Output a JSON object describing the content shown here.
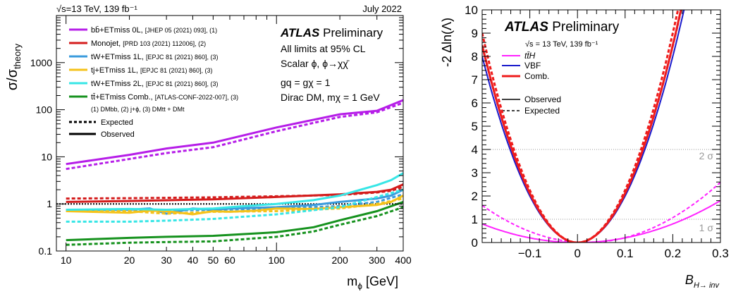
{
  "panels": [
    {
      "header_left": "√s=13 TeV, 139 fb⁻¹",
      "header_right": "July 2022",
      "ylabel": "σ/σtheory",
      "xlabel": "mϕ [GeV]",
      "atlas": "ATLAS",
      "atlas_suffix": "Preliminary",
      "info_lines": [
        "All limits at 95% CL",
        "Scalar ϕ, ϕ→χχ̄",
        "gq = gχ = 1",
        "Dirac DM, mχ = 1 GeV"
      ],
      "legend": [
        {
          "label": "bb̄+ETmiss 0L,",
          "ref": "[JHEP 05 (2021) 093], (1)",
          "color": "#b61de8"
        },
        {
          "label": "Monojet,",
          "ref": "[PRD 103 (2021) 112006], (2)",
          "color": "#d41c1c"
        },
        {
          "label": "tW+ETmiss 1L,",
          "ref": "[EPJC 81 (2021) 860], (3)",
          "color": "#3a9bdc"
        },
        {
          "label": "tj+ETmiss 1L,",
          "ref": "[EPJC 81 (2021) 860], (3)",
          "color": "#f5c21a"
        },
        {
          "label": "tW+ETmiss 2L,",
          "ref": "[EPJC 81 (2021) 860], (3)",
          "color": "#37e6e6"
        },
        {
          "label": "tt̄+ETmiss Comb.,",
          "ref": "[ATLAS-CONF-2022-007], (3)",
          "color": "#16921e"
        }
      ],
      "legend_note": "(1) DMbb, (2) j+ϕ, (3) DMtt + DMt",
      "style_legend": [
        "Expected",
        "Observed"
      ]
    },
    {
      "ylabel": "-2 Δln(Λ)",
      "xlabel": "BH→ inv",
      "atlas": "ATLAS",
      "atlas_suffix": "Preliminary",
      "energy": "√s = 13 TeV, 139 fb⁻¹",
      "legend": [
        {
          "label": "tt̄H",
          "color": "#ff22ff"
        },
        {
          "label": "VBF",
          "color": "#1a1acc"
        },
        {
          "label": "Comb.",
          "color": "#ee1c1c"
        }
      ],
      "style_legend": [
        "Observed",
        "Expected"
      ],
      "sigma_labels": [
        "2 σ",
        "1 σ"
      ]
    }
  ],
  "chart_data": [
    {
      "type": "line",
      "xscale": "log",
      "yscale": "log",
      "xlim": [
        9,
        400
      ],
      "ylim": [
        0.1,
        10000
      ],
      "x_ticks": [
        "10",
        "20",
        "30",
        "40",
        "50",
        "60",
        "100",
        "200",
        "300",
        "400"
      ],
      "y_ticks": [
        "0.1",
        "1",
        "10",
        "100",
        "1000"
      ],
      "reference_line": 1,
      "series": [
        {
          "name": "bb̄+ETmiss 0L",
          "style": "observed",
          "color": "#b61de8",
          "x": [
            10,
            20,
            30,
            50,
            100,
            200,
            300,
            400
          ],
          "y": [
            7,
            11,
            15,
            20,
            42,
            80,
            95,
            160
          ]
        },
        {
          "name": "bb̄+ETmiss 0L",
          "style": "expected",
          "color": "#b61de8",
          "x": [
            10,
            20,
            30,
            50,
            100,
            200,
            300,
            400
          ],
          "y": [
            5.5,
            9,
            12,
            16,
            35,
            70,
            88,
            140
          ]
        },
        {
          "name": "Monojet",
          "style": "observed",
          "color": "#d41c1c",
          "x": [
            10,
            20,
            50,
            100,
            200,
            300,
            350,
            400
          ],
          "y": [
            1.1,
            1.15,
            1.25,
            1.4,
            1.6,
            1.8,
            2.0,
            2.6
          ]
        },
        {
          "name": "Monojet",
          "style": "expected",
          "color": "#d41c1c",
          "x": [
            10,
            20,
            50,
            100,
            200,
            300,
            350,
            400
          ],
          "y": [
            1.3,
            1.32,
            1.38,
            1.45,
            1.55,
            1.75,
            1.9,
            2.3
          ]
        },
        {
          "name": "tW+ETmiss 1L",
          "style": "observed",
          "color": "#3a9bdc",
          "x": [
            10,
            20,
            25,
            30,
            40,
            50,
            60,
            100,
            150,
            200,
            300,
            350,
            400
          ],
          "y": [
            0.75,
            0.75,
            0.8,
            0.62,
            0.8,
            0.75,
            0.8,
            0.85,
            0.95,
            1.1,
            1.3,
            1.5,
            2.0
          ]
        },
        {
          "name": "tW+ETmiss 1L",
          "style": "expected",
          "color": "#3a9bdc",
          "x": [
            10,
            20,
            30,
            50,
            100,
            200,
            300,
            400
          ],
          "y": [
            0.7,
            0.7,
            0.72,
            0.75,
            0.8,
            0.9,
            1.1,
            1.6
          ]
        },
        {
          "name": "tj+ETmiss 1L",
          "style": "observed",
          "color": "#f5c21a",
          "x": [
            10,
            20,
            25,
            30,
            40,
            50,
            60,
            80,
            100,
            150,
            200,
            300,
            350,
            400
          ],
          "y": [
            0.7,
            0.65,
            0.72,
            0.7,
            0.6,
            0.7,
            0.68,
            0.72,
            0.8,
            0.78,
            0.85,
            0.95,
            1.1,
            1.5
          ]
        },
        {
          "name": "tj+ETmiss 1L",
          "style": "expected",
          "color": "#f5c21a",
          "x": [
            10,
            20,
            30,
            50,
            100,
            200,
            300,
            400
          ],
          "y": [
            0.72,
            0.7,
            0.62,
            0.68,
            0.7,
            0.8,
            1.0,
            1.3
          ]
        },
        {
          "name": "tW+ETmiss 2L",
          "style": "observed",
          "color": "#37e6e6",
          "x": [
            10,
            20,
            30,
            50,
            60,
            100,
            150,
            200,
            300,
            350,
            400
          ],
          "y": [
            0.75,
            0.78,
            0.75,
            0.8,
            0.85,
            1.0,
            1.2,
            1.5,
            2.5,
            3.2,
            4.5
          ]
        },
        {
          "name": "tW+ETmiss 2L",
          "style": "expected",
          "color": "#37e6e6",
          "x": [
            10,
            20,
            30,
            50,
            100,
            200,
            300,
            400
          ],
          "y": [
            0.42,
            0.42,
            0.44,
            0.48,
            0.6,
            0.85,
            1.4,
            2.0
          ]
        },
        {
          "name": "tt̄+ETmiss Comb.",
          "style": "observed",
          "color": "#16921e",
          "x": [
            10,
            20,
            30,
            50,
            100,
            150,
            200,
            300,
            400
          ],
          "y": [
            0.17,
            0.19,
            0.2,
            0.21,
            0.25,
            0.32,
            0.45,
            0.7,
            1.1
          ]
        },
        {
          "name": "tt̄+ETmiss Comb.",
          "style": "expected",
          "color": "#16921e",
          "x": [
            10,
            20,
            30,
            50,
            100,
            150,
            200,
            300,
            400
          ],
          "y": [
            0.135,
            0.15,
            0.155,
            0.16,
            0.2,
            0.26,
            0.36,
            0.55,
            0.85
          ]
        }
      ]
    },
    {
      "type": "line",
      "xlim": [
        -0.2,
        0.3
      ],
      "ylim": [
        0,
        10
      ],
      "x_ticks": [
        "−0.1",
        "0",
        "0.1",
        "0.2",
        "0.3"
      ],
      "y_ticks": [
        "0",
        "1",
        "2",
        "3",
        "4",
        "5",
        "6",
        "7",
        "8",
        "9",
        "10"
      ],
      "sigma_lines": [
        1,
        4
      ],
      "series": [
        {
          "name": "tt̄H",
          "style": "observed",
          "color": "#ff22ff",
          "min": 0.0,
          "coef": 20
        },
        {
          "name": "tt̄H",
          "style": "expected",
          "color": "#ff22ff",
          "min": 0.02,
          "coef": 33
        },
        {
          "name": "VBF",
          "style": "observed",
          "color": "#1a1acc",
          "min": 0.0,
          "coef": 200
        },
        {
          "name": "VBF",
          "style": "expected",
          "color": "#1a1acc",
          "min": 0.0,
          "coef": 210
        },
        {
          "name": "Comb.",
          "style": "observed",
          "color": "#ee1c1c",
          "min": 0.0,
          "coef": 212
        },
        {
          "name": "Comb.",
          "style": "expected",
          "color": "#ee1c1c",
          "min": 0.0,
          "coef": 225
        }
      ]
    }
  ]
}
